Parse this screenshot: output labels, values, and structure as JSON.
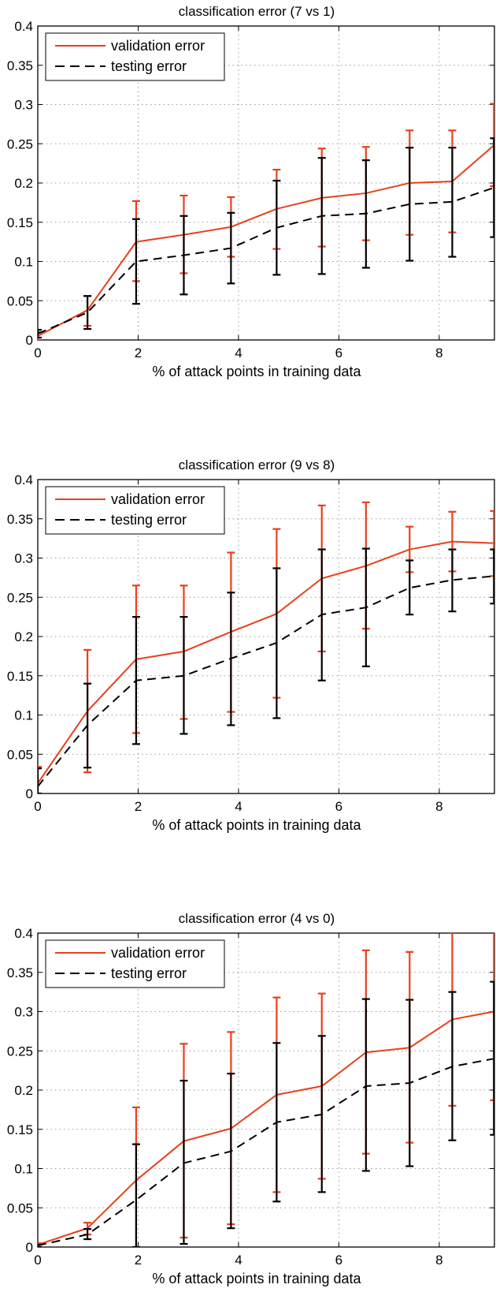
{
  "colors": {
    "validation": "#e8401c",
    "testing": "#000000",
    "grid": "#9a9a9a"
  },
  "chart_data": [
    {
      "type": "line",
      "title": "classification error (7 vs 1)",
      "xlabel": "% of attack points in training data",
      "ylabel": "",
      "xlim": [
        0,
        9.1
      ],
      "ylim": [
        0,
        0.4
      ],
      "xticks": [
        0,
        2,
        4,
        6,
        8
      ],
      "xtick_labels": [
        "0",
        "2",
        "4",
        "6",
        "8"
      ],
      "yticks": [
        0,
        0.05,
        0.1,
        0.15,
        0.2,
        0.25,
        0.3,
        0.35,
        0.4
      ],
      "ytick_labels": [
        "0",
        "0.05",
        "0.1",
        "0.15",
        "0.2",
        "0.25",
        "0.3",
        "0.35",
        "0.4"
      ],
      "grid": true,
      "legend_position": "top-left",
      "x": [
        0,
        0.99,
        1.96,
        2.91,
        3.85,
        4.76,
        5.66,
        6.54,
        7.41,
        8.26,
        9.09
      ],
      "series": [
        {
          "name": "validation error",
          "style": "solid",
          "values": [
            0.005,
            0.038,
            0.125,
            0.134,
            0.144,
            0.167,
            0.181,
            0.187,
            0.2,
            0.202,
            0.248
          ],
          "lower": [
            0.0,
            0.018,
            0.075,
            0.085,
            0.106,
            0.116,
            0.119,
            0.127,
            0.134,
            0.137,
            0.196
          ],
          "upper": [
            0.01,
            0.056,
            0.177,
            0.184,
            0.182,
            0.217,
            0.244,
            0.246,
            0.267,
            0.267,
            0.301
          ]
        },
        {
          "name": "testing error",
          "style": "dashed",
          "values": [
            0.008,
            0.035,
            0.1,
            0.108,
            0.117,
            0.143,
            0.158,
            0.161,
            0.173,
            0.176,
            0.194
          ],
          "lower": [
            0.003,
            0.014,
            0.046,
            0.058,
            0.072,
            0.083,
            0.084,
            0.092,
            0.101,
            0.106,
            0.131
          ],
          "upper": [
            0.013,
            0.056,
            0.154,
            0.158,
            0.162,
            0.203,
            0.232,
            0.229,
            0.245,
            0.245,
            0.257
          ]
        }
      ]
    },
    {
      "type": "line",
      "title": "classification error (9 vs 8)",
      "xlabel": "% of attack points in training data",
      "ylabel": "",
      "xlim": [
        0,
        9.1
      ],
      "ylim": [
        0,
        0.4
      ],
      "xticks": [
        0,
        2,
        4,
        6,
        8
      ],
      "xtick_labels": [
        "0",
        "2",
        "4",
        "6",
        "8"
      ],
      "yticks": [
        0,
        0.05,
        0.1,
        0.15,
        0.2,
        0.25,
        0.3,
        0.35,
        0.4
      ],
      "ytick_labels": [
        "0",
        "0.05",
        "0.1",
        "0.15",
        "0.2",
        "0.25",
        "0.3",
        "0.35",
        "0.4"
      ],
      "grid": true,
      "legend_position": "top-left",
      "x": [
        0,
        0.99,
        1.96,
        2.91,
        3.85,
        4.76,
        5.66,
        6.54,
        7.41,
        8.26,
        9.09
      ],
      "series": [
        {
          "name": "validation error",
          "style": "solid",
          "values": [
            0.013,
            0.105,
            0.171,
            0.181,
            0.206,
            0.229,
            0.274,
            0.29,
            0.311,
            0.321,
            0.319
          ],
          "lower": [
            0.0,
            0.027,
            0.077,
            0.095,
            0.104,
            0.122,
            0.181,
            0.21,
            0.282,
            0.283,
            0.277
          ],
          "upper": [
            0.034,
            0.183,
            0.265,
            0.265,
            0.307,
            0.337,
            0.367,
            0.371,
            0.34,
            0.359,
            0.36
          ]
        },
        {
          "name": "testing error",
          "style": "dashed",
          "values": [
            0.009,
            0.087,
            0.144,
            0.15,
            0.172,
            0.192,
            0.228,
            0.237,
            0.262,
            0.272,
            0.277
          ],
          "lower": [
            0.0,
            0.033,
            0.063,
            0.076,
            0.087,
            0.096,
            0.144,
            0.162,
            0.228,
            0.232,
            0.242
          ],
          "upper": [
            0.032,
            0.14,
            0.225,
            0.225,
            0.256,
            0.287,
            0.311,
            0.312,
            0.297,
            0.311,
            0.311
          ]
        }
      ]
    },
    {
      "type": "line",
      "title": "classification error (4 vs 0)",
      "xlabel": "% of attack points in training data",
      "ylabel": "",
      "xlim": [
        0,
        9.1
      ],
      "ylim": [
        0,
        0.4
      ],
      "xticks": [
        0,
        2,
        4,
        6,
        8
      ],
      "xtick_labels": [
        "0",
        "2",
        "4",
        "6",
        "8"
      ],
      "yticks": [
        0,
        0.05,
        0.1,
        0.15,
        0.2,
        0.25,
        0.3,
        0.35,
        0.4
      ],
      "ytick_labels": [
        "0",
        "0.05",
        "0.1",
        "0.15",
        "0.2",
        "0.25",
        "0.3",
        "0.35",
        "0.4"
      ],
      "grid": true,
      "legend_position": "top-left",
      "x": [
        0,
        0.99,
        1.96,
        2.91,
        3.85,
        4.76,
        5.66,
        6.54,
        7.41,
        8.26,
        9.09
      ],
      "series": [
        {
          "name": "validation error",
          "style": "solid",
          "values": [
            0.003,
            0.024,
            0.085,
            0.135,
            0.151,
            0.194,
            0.205,
            0.248,
            0.254,
            0.29,
            0.3
          ],
          "lower": [
            0.0,
            0.016,
            0.0,
            0.012,
            0.029,
            0.07,
            0.087,
            0.119,
            0.133,
            0.18,
            0.187
          ],
          "upper": [
            0.005,
            0.031,
            0.178,
            0.259,
            0.274,
            0.318,
            0.323,
            0.378,
            0.376,
            0.4,
            0.4
          ]
        },
        {
          "name": "testing error",
          "style": "dashed",
          "values": [
            0.002,
            0.016,
            0.06,
            0.107,
            0.122,
            0.159,
            0.169,
            0.205,
            0.209,
            0.23,
            0.24
          ],
          "lower": [
            0.0,
            0.01,
            0.0,
            0.004,
            0.024,
            0.058,
            0.07,
            0.097,
            0.103,
            0.136,
            0.143
          ],
          "upper": [
            0.003,
            0.023,
            0.131,
            0.212,
            0.221,
            0.26,
            0.269,
            0.316,
            0.315,
            0.325,
            0.338
          ]
        }
      ]
    }
  ]
}
